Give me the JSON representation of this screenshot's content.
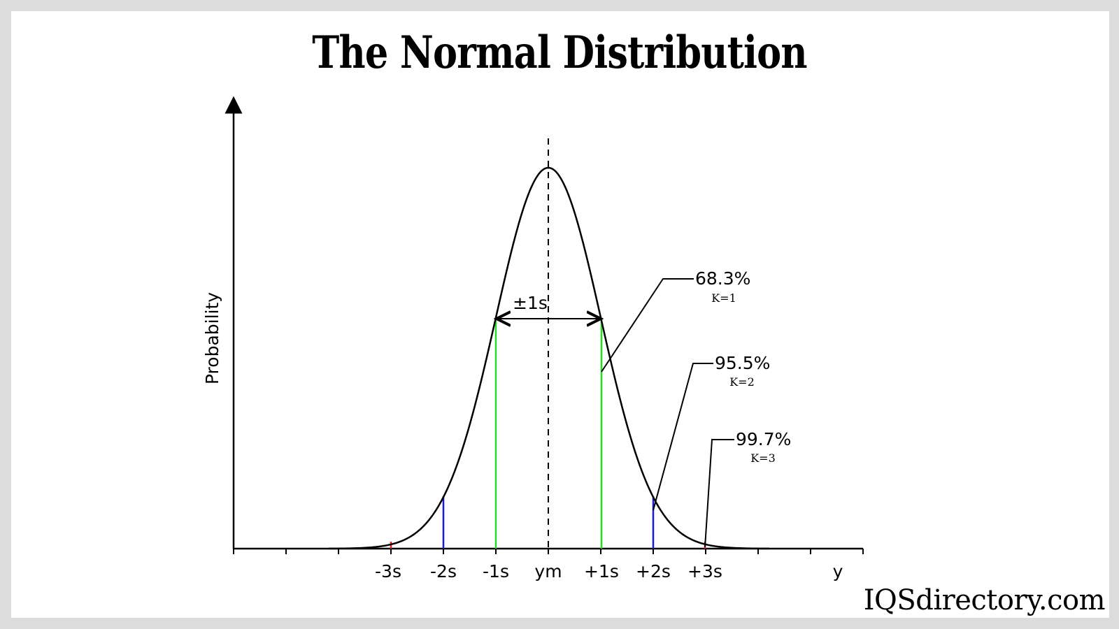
{
  "title": "The Normal Distribution",
  "watermark": "IQSdirectory.com",
  "axis": {
    "y_label": "Probability",
    "x_label": "y"
  },
  "tick_labels": [
    "-3s",
    "-2s",
    "-1s",
    "ym",
    "+1s",
    "+2s",
    "+3s"
  ],
  "width_annotation": "±1s",
  "callouts": [
    {
      "percent": "68.3%",
      "k": "K=1"
    },
    {
      "percent": "95.5%",
      "k": "K=2"
    },
    {
      "percent": "99.7%",
      "k": "K=3"
    }
  ],
  "colors": {
    "curve": "#000000",
    "sigma1": "#22dd22",
    "sigma2": "#1a1adb",
    "sigma3": "#dd2222",
    "background": "#ffffff",
    "border": "#dcdcdc"
  }
}
